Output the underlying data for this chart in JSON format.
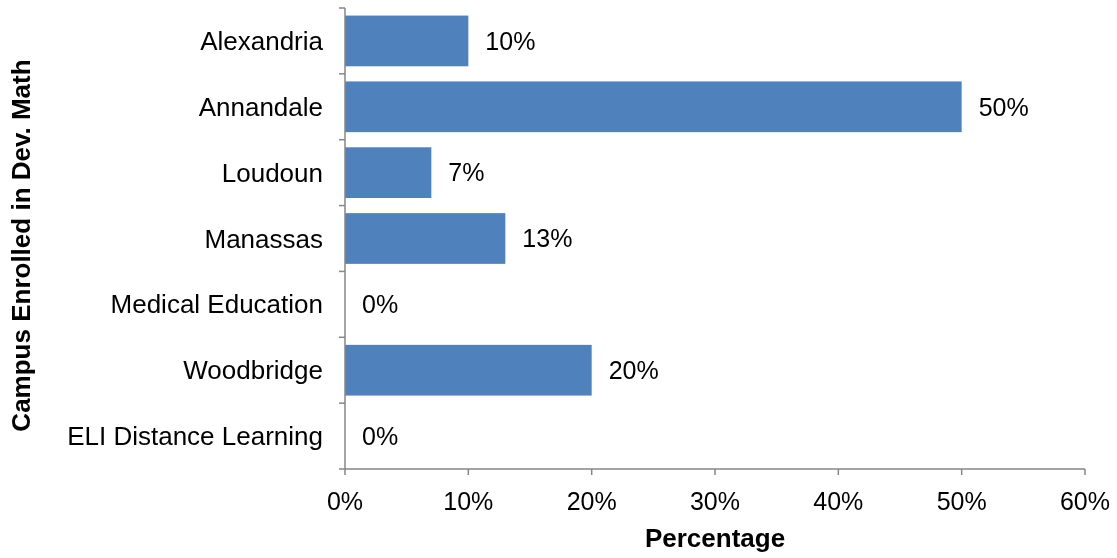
{
  "chart_data": {
    "type": "bar",
    "orientation": "horizontal",
    "xlabel": "Percentage",
    "ylabel": "Campus Enrolled in Dev. Math",
    "categories": [
      "Alexandria",
      "Annandale",
      "Loudoun",
      "Manassas",
      "Medical Education",
      "Woodbridge",
      "ELI Distance Learning"
    ],
    "values": [
      10,
      50,
      7,
      13,
      0,
      20,
      0
    ],
    "color": "#4f81bd",
    "value_labels": [
      "10%",
      "50%",
      "7%",
      "13%",
      "0%",
      "20%",
      "0%"
    ],
    "xlim": [
      0,
      60
    ],
    "xticks": [
      {
        "value": 0,
        "label": "0%"
      },
      {
        "value": 10,
        "label": "10%"
      },
      {
        "value": 20,
        "label": "20%"
      },
      {
        "value": 30,
        "label": "30%"
      },
      {
        "value": 40,
        "label": "40%"
      },
      {
        "value": 50,
        "label": "50%"
      },
      {
        "value": 60,
        "label": "60%"
      }
    ]
  }
}
